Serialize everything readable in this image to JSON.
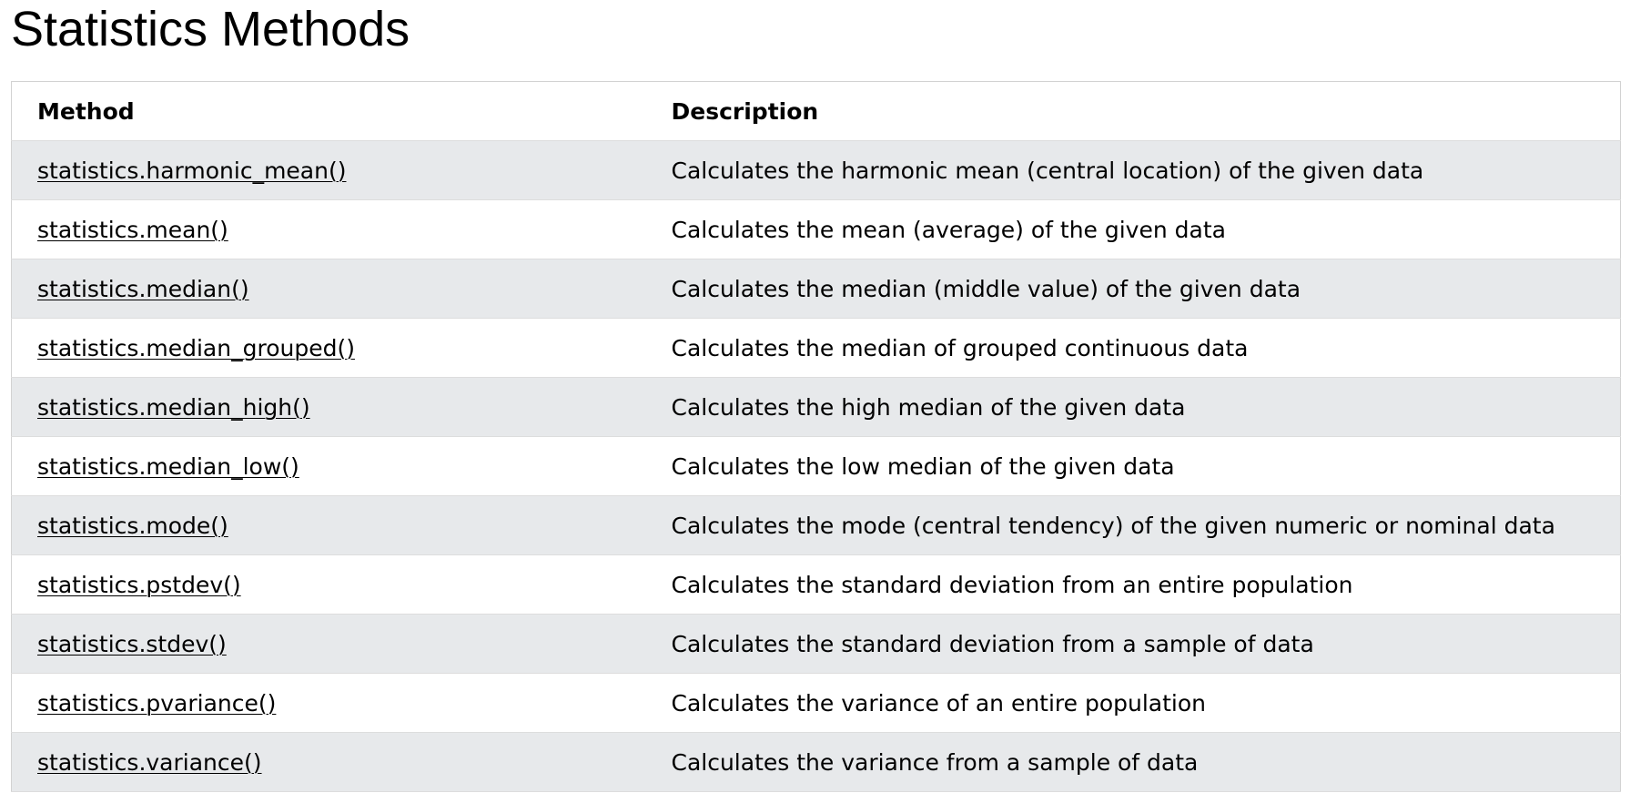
{
  "page": {
    "title": "Statistics Methods"
  },
  "table": {
    "headers": [
      "Method",
      "Description"
    ],
    "rows": [
      {
        "method": "statistics.harmonic_mean()",
        "description": "Calculates the harmonic mean (central location) of the given data"
      },
      {
        "method": "statistics.mean()",
        "description": "Calculates the mean (average) of the given data"
      },
      {
        "method": "statistics.median()",
        "description": "Calculates the median (middle value) of the given data"
      },
      {
        "method": "statistics.median_grouped()",
        "description": "Calculates the median of grouped continuous data"
      },
      {
        "method": "statistics.median_high()",
        "description": "Calculates the high median of the given data"
      },
      {
        "method": "statistics.median_low()",
        "description": "Calculates the low median of the given data"
      },
      {
        "method": "statistics.mode()",
        "description": "Calculates the mode (central tendency) of the given numeric or nominal data"
      },
      {
        "method": "statistics.pstdev()",
        "description": "Calculates the standard deviation from an entire population"
      },
      {
        "method": "statistics.stdev()",
        "description": "Calculates the standard deviation from a sample of data"
      },
      {
        "method": "statistics.pvariance()",
        "description": "Calculates the variance of an entire population"
      },
      {
        "method": "statistics.variance()",
        "description": "Calculates the variance from a sample of data"
      }
    ]
  },
  "colors": {
    "row_stripe": "#e7e9eb",
    "border": "#d2d2d2",
    "text": "#000000"
  }
}
